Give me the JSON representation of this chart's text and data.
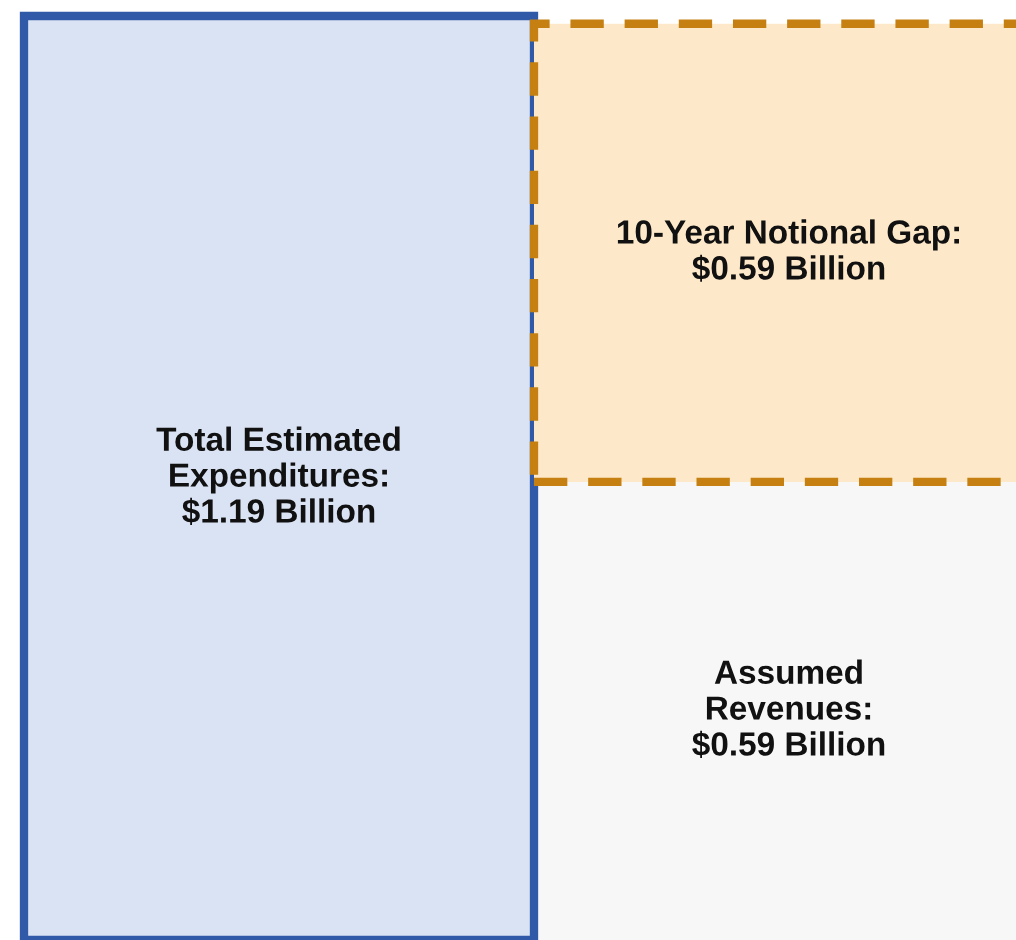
{
  "chart_data": {
    "type": "bar",
    "stacked": true,
    "categories": [
      null,
      null
    ],
    "series": [
      {
        "color": "#dae3f3",
        "line_style": "solid",
        "values": [
          1.19,
          null
        ],
        "value_labels": [
          "Total Estimated\nExpenditures:\n$1.19 Billion",
          null
        ]
      },
      {
        "color": "#f7f7f7",
        "values": [
          null,
          0.59
        ],
        "value_labels": [
          null,
          "Assumed\nRevenues:\n$0.59 Billion"
        ]
      },
      {
        "color": "#fde9c9",
        "line_style": "dashed",
        "values": [
          null,
          0.59
        ],
        "value_labels": [
          null,
          "10-Year Notional Gap:\n$0.59 Billion"
        ]
      }
    ]
  }
}
